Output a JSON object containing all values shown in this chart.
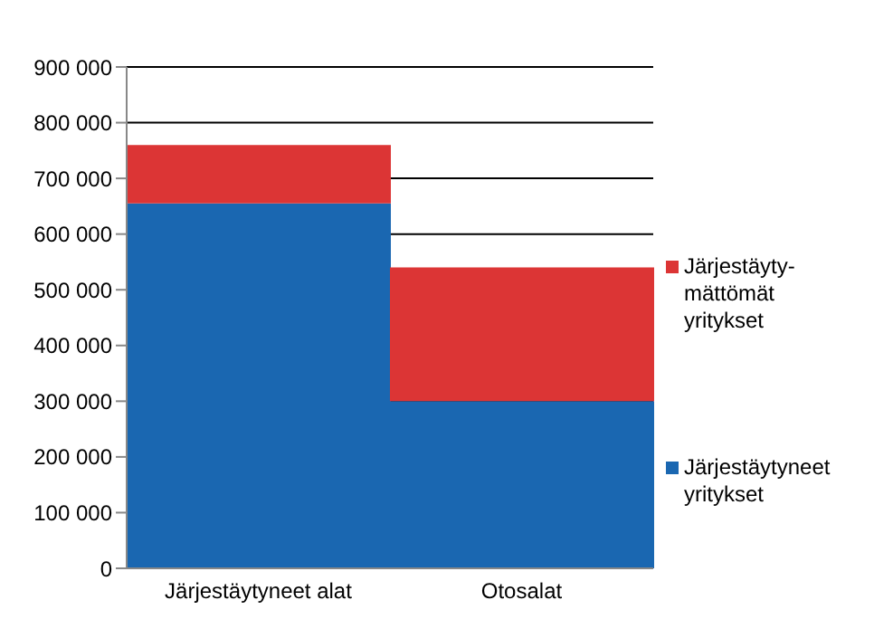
{
  "chart_data": {
    "type": "bar",
    "stacked": true,
    "categories": [
      "Järjestäytyneet alat",
      "Otosalat"
    ],
    "series": [
      {
        "name": "Järjestäytyneet yritykset",
        "color": "#1a67b1",
        "values": [
          655000,
          300000
        ]
      },
      {
        "name": "Järjestäyty-mättömät yritykset",
        "color": "#dc3535",
        "values": [
          105000,
          240000
        ]
      }
    ],
    "ylim": [
      0,
      900000
    ],
    "yticks": [
      {
        "value": 0,
        "label": "0"
      },
      {
        "value": 100000,
        "label": "100 000"
      },
      {
        "value": 200000,
        "label": "200 000"
      },
      {
        "value": 300000,
        "label": "300 000"
      },
      {
        "value": 400000,
        "label": "400 000"
      },
      {
        "value": 500000,
        "label": "500 000"
      },
      {
        "value": 600000,
        "label": "600 000"
      },
      {
        "value": 700000,
        "label": "700 000"
      },
      {
        "value": 800000,
        "label": "800 000"
      },
      {
        "value": 900000,
        "label": "900 000"
      }
    ],
    "grid": "y",
    "legend": "right"
  }
}
